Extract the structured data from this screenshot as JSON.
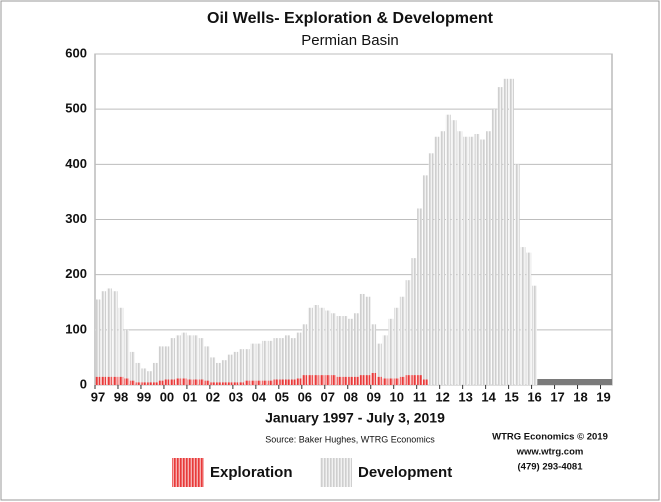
{
  "chart_data": {
    "type": "stacked_bar",
    "title": "Oil Wells- Exploration & Development",
    "subtitle": "Permian Basin",
    "x_label": "January 1997 - July 3, 2019",
    "source": "Source: Baker Hughes, WTRG Economics",
    "credits": [
      "WTRG Economics © 2019",
      "www.wtrg.com",
      "(479) 293-4081"
    ],
    "categories": [
      "97",
      null,
      null,
      null,
      "98",
      null,
      null,
      null,
      "99",
      null,
      null,
      null,
      "00",
      null,
      null,
      null,
      "01",
      null,
      null,
      null,
      "02",
      null,
      null,
      null,
      "03",
      null,
      null,
      null,
      "04",
      null,
      null,
      null,
      "05",
      null,
      null,
      null,
      "06",
      null,
      null,
      null,
      "07",
      null,
      null,
      null,
      "08",
      null,
      null,
      null,
      "09",
      null,
      null,
      null,
      "10",
      null,
      null,
      null,
      "11",
      null,
      null,
      null,
      "12",
      null,
      null,
      null,
      "13",
      null,
      null,
      null,
      "14",
      null,
      null,
      null,
      "15",
      null,
      null,
      null,
      "16",
      null,
      null,
      null,
      "17",
      null,
      null,
      null,
      "18",
      null,
      null,
      null,
      "19",
      null
    ],
    "series": [
      {
        "name": "Exploration",
        "color": "#e83a3a",
        "values": [
          15,
          15,
          15,
          15,
          15,
          12,
          8,
          5,
          5,
          5,
          5,
          8,
          10,
          10,
          12,
          12,
          10,
          10,
          10,
          8,
          5,
          5,
          5,
          5,
          5,
          5,
          8,
          8,
          8,
          8,
          8,
          10,
          10,
          10,
          10,
          12,
          18,
          18,
          18,
          18,
          18,
          18,
          15,
          15,
          15,
          15,
          18,
          18,
          22,
          15,
          12,
          12,
          12,
          15,
          18,
          18,
          18,
          10,
          0,
          0,
          0,
          0,
          0,
          0,
          0,
          0,
          0,
          0,
          0,
          0,
          0,
          0,
          0,
          0,
          0,
          0,
          0,
          null,
          null,
          null,
          null,
          null,
          null,
          null,
          null,
          null,
          null,
          null,
          null,
          null
        ]
      },
      {
        "name": "Development",
        "color": "#cfcfcf",
        "values": [
          140,
          155,
          160,
          155,
          125,
          88,
          52,
          35,
          25,
          20,
          35,
          62,
          60,
          75,
          78,
          83,
          80,
          80,
          75,
          62,
          45,
          35,
          40,
          50,
          55,
          60,
          57,
          67,
          67,
          72,
          72,
          75,
          75,
          80,
          75,
          83,
          92,
          122,
          127,
          122,
          117,
          112,
          110,
          110,
          105,
          115,
          147,
          142,
          88,
          60,
          78,
          108,
          128,
          145,
          172,
          212,
          302,
          370,
          420,
          450,
          460,
          490,
          480,
          460,
          450,
          450,
          455,
          445,
          460,
          500,
          540,
          555,
          555,
          400,
          250,
          240,
          180,
          null,
          null,
          null,
          null,
          null,
          null,
          null,
          null,
          null,
          null,
          null,
          null,
          null
        ]
      }
    ],
    "ylim": [
      0,
      600
    ],
    "yticks": [
      0,
      100,
      200,
      300,
      400,
      500,
      600
    ],
    "grid": true
  }
}
